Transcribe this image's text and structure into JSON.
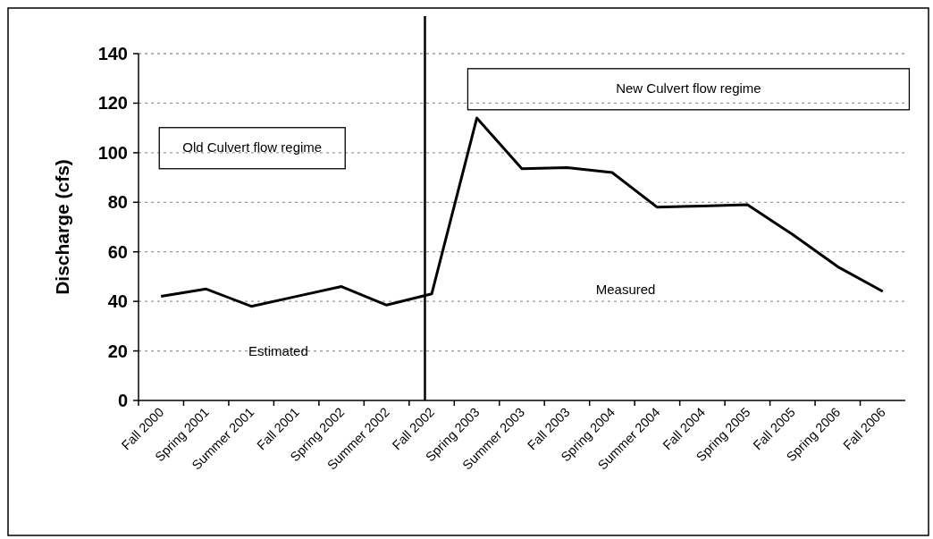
{
  "chart_data": {
    "type": "line",
    "ylabel": "Discharge (cfs)",
    "categories": [
      "Fall 2000",
      "Spring 2001",
      "Summer 2001",
      "Fall 2001",
      "Spring 2002",
      "Summer 2002",
      "Fall 2002",
      "Spring 2003",
      "Summer 2003",
      "Fall 2003",
      "Spring 2004",
      "Summer 2004",
      "Fall 2004",
      "Spring 2005",
      "Fall 2005",
      "Spring 2006",
      "Fall 2006"
    ],
    "series": [
      {
        "color": "#000000",
        "values": [
          42,
          45,
          38,
          42,
          46,
          38.5,
          43,
          114,
          93.5,
          94,
          92,
          78,
          78.5,
          79,
          67,
          54,
          44
        ]
      }
    ],
    "ylim": [
      0,
      140
    ],
    "yticks": [
      0,
      20,
      40,
      60,
      80,
      100,
      120,
      140
    ],
    "grid": "y",
    "marker": "none",
    "line_style": "solid",
    "ref_lines": [
      {
        "axis": "x",
        "value": "Fall 2002",
        "color": "#000000"
      }
    ],
    "annotations": [
      "Old Culvert flow regime",
      "New Culvert flow regime",
      "Estimated",
      "Measured"
    ]
  }
}
